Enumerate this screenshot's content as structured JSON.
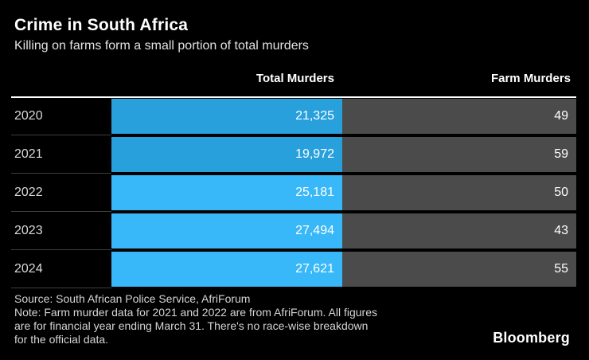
{
  "header": {
    "title": "Crime in South Africa",
    "subtitle": "Killing on farms form a small portion of total murders"
  },
  "table": {
    "columns": {
      "total_label": "Total Murders",
      "farm_label": "Farm Murders"
    },
    "rows": [
      {
        "year": "2020",
        "total": "21,325",
        "farm": "49",
        "bar_color": "#28a0dc"
      },
      {
        "year": "2021",
        "total": "19,972",
        "farm": "59",
        "bar_color": "#28a0dc"
      },
      {
        "year": "2022",
        "total": "25,181",
        "farm": "50",
        "bar_color": "#38b8f8"
      },
      {
        "year": "2023",
        "total": "27,494",
        "farm": "43",
        "bar_color": "#38b8f8"
      },
      {
        "year": "2024",
        "total": "27,621",
        "farm": "55",
        "bar_color": "#38b8f8"
      }
    ],
    "colors": {
      "dark_blue": "#28a0dc",
      "light_blue": "#38b8f8",
      "farm_column_gray": "#4b4b4b",
      "top_rule": "#ffffff"
    }
  },
  "footer": {
    "lines": [
      "Source: South African Police Service, AfriForum",
      "Note: Farm murder data for 2021 and 2022 are from AfriForum. All figures",
      "are for financial year ending March 31. There's no race-wise breakdown",
      "for the official data."
    ],
    "brand": "Bloomberg"
  },
  "chart_data": {
    "type": "table",
    "title": "Crime in South Africa",
    "subtitle": "Killing on farms form a small portion of total murders",
    "categories": [
      "2020",
      "2021",
      "2022",
      "2023",
      "2024"
    ],
    "series": [
      {
        "name": "Total Murders",
        "values": [
          21325,
          19972,
          25181,
          27494,
          27621
        ]
      },
      {
        "name": "Farm Murders",
        "values": [
          49,
          59,
          50,
          43,
          55
        ]
      }
    ],
    "source": "South African Police Service, AfriForum",
    "note": "Farm murder data for 2021 and 2022 are from AfriForum. All figures are for financial year ending March 31. There's no race-wise breakdown for the official data.",
    "legend_position": "none",
    "grid": false
  }
}
